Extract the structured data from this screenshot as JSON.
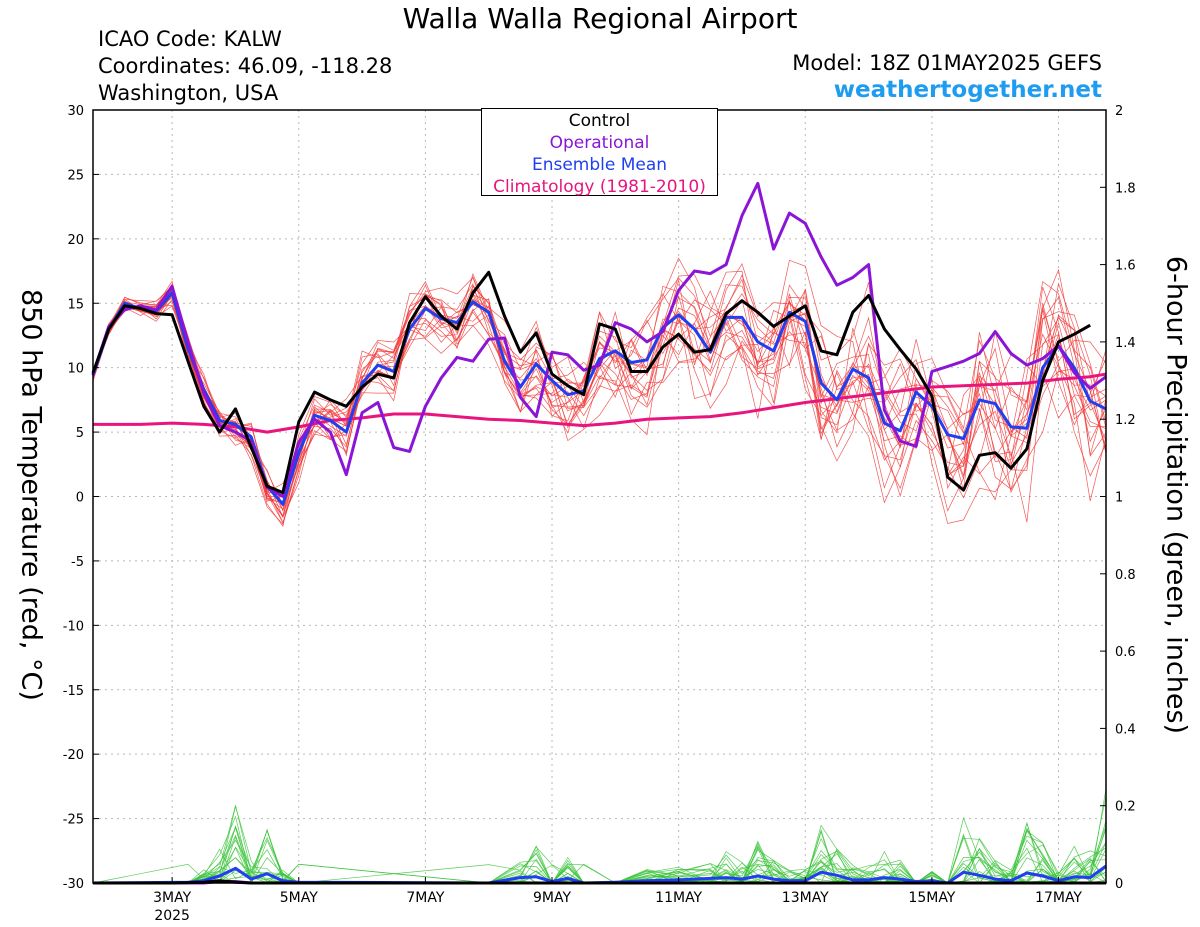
{
  "header": {
    "title": "Walla Walla Regional Airport",
    "icao": "ICAO Code: KALW",
    "coords": "Coordinates: 46.09, -118.28",
    "region": "Washington, USA",
    "model": "Model: 18Z 01MAY2025 GEFS",
    "brand": "weathertogether.net"
  },
  "axes": {
    "left_label": "850 hPa Temperature (red, °C)",
    "right_label": "6-hour Precipitation (green, inches)"
  },
  "colors": {
    "control": "#000000",
    "operational": "#8a15d6",
    "mean": "#1f3ff0",
    "climatology": "#e8157e",
    "members_temp": "#f23a3a",
    "members_precip": "#3cc43c"
  },
  "chart_data": {
    "type": "line",
    "x_unit": "day of May 2025 (UTC)",
    "xlim": [
      1.75,
      17.75
    ],
    "x_ticks": [
      {
        "value": 3,
        "label": "3MAY",
        "sublabel": "2025"
      },
      {
        "value": 5,
        "label": "5MAY"
      },
      {
        "value": 7,
        "label": "7MAY"
      },
      {
        "value": 9,
        "label": "9MAY"
      },
      {
        "value": 11,
        "label": "11MAY"
      },
      {
        "value": 13,
        "label": "13MAY"
      },
      {
        "value": 15,
        "label": "15MAY"
      },
      {
        "value": 17,
        "label": "17MAY"
      }
    ],
    "ylim_left": [
      -30,
      30
    ],
    "yticks_left": [
      30,
      25,
      20,
      15,
      10,
      5,
      0,
      -5,
      -10,
      -15,
      -20,
      -25,
      -30
    ],
    "ylim_right": [
      0,
      2
    ],
    "yticks_right": [
      "2",
      "1.8",
      "1.6",
      "1.4",
      "1.2",
      "1",
      "0.8",
      "0.6",
      "0.4",
      "0.2",
      "0"
    ],
    "grid": true,
    "legend": {
      "position": "top-center",
      "entries": [
        "Control",
        "Operational",
        "Ensemble Mean",
        "Climatology (1981-2010)"
      ]
    },
    "series": [
      {
        "name": "Control",
        "axis": "left",
        "points": [
          [
            1.75,
            9.6
          ],
          [
            2.0,
            13.0
          ],
          [
            2.25,
            14.8
          ],
          [
            2.5,
            14.6
          ],
          [
            2.75,
            14.2
          ],
          [
            3.0,
            14.1
          ],
          [
            3.25,
            10.5
          ],
          [
            3.5,
            7.0
          ],
          [
            3.75,
            5.0
          ],
          [
            4.0,
            6.8
          ],
          [
            4.25,
            3.8
          ],
          [
            4.5,
            0.8
          ],
          [
            4.75,
            0.3
          ],
          [
            5.0,
            5.8
          ],
          [
            5.25,
            8.1
          ],
          [
            5.5,
            7.5
          ],
          [
            5.75,
            7.0
          ],
          [
            6.0,
            8.5
          ],
          [
            6.25,
            9.5
          ],
          [
            6.5,
            9.2
          ],
          [
            6.75,
            13.5
          ],
          [
            7.0,
            15.5
          ],
          [
            7.25,
            14.0
          ],
          [
            7.5,
            13.0
          ],
          [
            7.75,
            15.8
          ],
          [
            8.0,
            17.4
          ],
          [
            8.25,
            14.0
          ],
          [
            8.5,
            11.2
          ],
          [
            8.75,
            12.7
          ],
          [
            9.0,
            9.5
          ],
          [
            9.25,
            8.6
          ],
          [
            9.5,
            7.9
          ],
          [
            9.75,
            13.4
          ],
          [
            10.0,
            13.0
          ],
          [
            10.25,
            9.7
          ],
          [
            10.5,
            9.7
          ],
          [
            10.75,
            11.6
          ],
          [
            11.0,
            12.6
          ],
          [
            11.25,
            11.2
          ],
          [
            11.5,
            11.4
          ],
          [
            11.75,
            14.2
          ],
          [
            12.0,
            15.2
          ],
          [
            12.25,
            14.3
          ],
          [
            12.5,
            13.2
          ],
          [
            12.75,
            14.0
          ],
          [
            13.0,
            14.8
          ],
          [
            13.25,
            11.3
          ],
          [
            13.5,
            11.0
          ],
          [
            13.75,
            14.3
          ],
          [
            14.0,
            15.6
          ],
          [
            14.25,
            13.0
          ],
          [
            14.5,
            11.4
          ],
          [
            14.75,
            9.9
          ],
          [
            15.0,
            7.8
          ],
          [
            15.25,
            1.5
          ],
          [
            15.5,
            0.5
          ],
          [
            15.75,
            3.2
          ],
          [
            16.0,
            3.4
          ],
          [
            16.25,
            2.2
          ],
          [
            16.5,
            3.7
          ],
          [
            16.75,
            9.0
          ],
          [
            17.0,
            12.0
          ],
          [
            17.25,
            12.6
          ],
          [
            17.5,
            13.3
          ]
        ]
      },
      {
        "name": "Operational",
        "axis": "left",
        "points": [
          [
            1.75,
            9.5
          ],
          [
            2.0,
            13.2
          ],
          [
            2.25,
            14.5
          ],
          [
            2.5,
            14.8
          ],
          [
            2.75,
            14.5
          ],
          [
            3.0,
            16.3
          ],
          [
            3.25,
            12.0
          ],
          [
            3.5,
            8.0
          ],
          [
            3.75,
            5.5
          ],
          [
            4.0,
            5.0
          ],
          [
            4.25,
            4.3
          ],
          [
            4.5,
            0.7
          ],
          [
            4.75,
            0.0
          ],
          [
            5.0,
            4.2
          ],
          [
            5.25,
            6.0
          ],
          [
            5.5,
            5.0
          ],
          [
            5.75,
            1.7
          ],
          [
            6.0,
            6.5
          ],
          [
            6.25,
            7.3
          ],
          [
            6.5,
            3.8
          ],
          [
            6.75,
            3.5
          ],
          [
            7.0,
            7.0
          ],
          [
            7.25,
            9.2
          ],
          [
            7.5,
            10.8
          ],
          [
            7.75,
            10.5
          ],
          [
            8.0,
            12.2
          ],
          [
            8.25,
            12.3
          ],
          [
            8.5,
            7.7
          ],
          [
            8.75,
            6.2
          ],
          [
            9.0,
            11.2
          ],
          [
            9.25,
            11.0
          ],
          [
            9.5,
            9.8
          ],
          [
            9.75,
            10.2
          ],
          [
            10.0,
            13.5
          ],
          [
            10.25,
            13.0
          ],
          [
            10.5,
            12.0
          ],
          [
            10.75,
            12.8
          ],
          [
            11.0,
            16.0
          ],
          [
            11.25,
            17.5
          ],
          [
            11.5,
            17.3
          ],
          [
            11.75,
            18.0
          ],
          [
            12.0,
            21.8
          ],
          [
            12.25,
            24.3
          ],
          [
            12.5,
            19.2
          ],
          [
            12.75,
            22.0
          ],
          [
            13.0,
            21.2
          ],
          [
            13.25,
            18.6
          ],
          [
            13.5,
            16.4
          ],
          [
            13.75,
            17.0
          ],
          [
            14.0,
            18.0
          ],
          [
            14.25,
            6.7
          ],
          [
            14.5,
            4.3
          ],
          [
            14.75,
            3.9
          ],
          [
            15.0,
            9.7
          ],
          [
            15.25,
            10.1
          ],
          [
            15.5,
            10.5
          ],
          [
            15.75,
            11.1
          ],
          [
            16.0,
            12.8
          ],
          [
            16.25,
            11.1
          ],
          [
            16.5,
            10.2
          ],
          [
            16.75,
            10.7
          ],
          [
            17.0,
            11.7
          ],
          [
            17.25,
            9.6
          ],
          [
            17.5,
            8.4
          ],
          [
            17.75,
            9.3
          ]
        ]
      },
      {
        "name": "Ensemble Mean",
        "axis": "left",
        "points": [
          [
            1.75,
            9.4
          ],
          [
            2.0,
            13.0
          ],
          [
            2.25,
            15.0
          ],
          [
            2.5,
            14.6
          ],
          [
            2.75,
            14.4
          ],
          [
            3.0,
            15.8
          ],
          [
            3.25,
            11.5
          ],
          [
            3.5,
            8.3
          ],
          [
            3.75,
            5.9
          ],
          [
            4.0,
            5.6
          ],
          [
            4.25,
            4.6
          ],
          [
            4.5,
            0.8
          ],
          [
            4.75,
            -0.6
          ],
          [
            5.0,
            3.4
          ],
          [
            5.25,
            6.3
          ],
          [
            5.5,
            5.9
          ],
          [
            5.75,
            5.0
          ],
          [
            6.0,
            8.8
          ],
          [
            6.25,
            10.2
          ],
          [
            6.5,
            9.7
          ],
          [
            6.75,
            13.0
          ],
          [
            7.0,
            14.6
          ],
          [
            7.25,
            13.8
          ],
          [
            7.5,
            13.5
          ],
          [
            7.75,
            15.1
          ],
          [
            8.0,
            14.3
          ],
          [
            8.25,
            10.5
          ],
          [
            8.5,
            8.5
          ],
          [
            8.75,
            10.3
          ],
          [
            9.0,
            9.0
          ],
          [
            9.25,
            7.9
          ],
          [
            9.5,
            8.2
          ],
          [
            9.75,
            10.7
          ],
          [
            10.0,
            11.3
          ],
          [
            10.25,
            10.4
          ],
          [
            10.5,
            10.6
          ],
          [
            10.75,
            13.1
          ],
          [
            11.0,
            14.1
          ],
          [
            11.25,
            13.0
          ],
          [
            11.5,
            11.2
          ],
          [
            11.75,
            13.9
          ],
          [
            12.0,
            13.9
          ],
          [
            12.25,
            12.0
          ],
          [
            12.5,
            11.3
          ],
          [
            12.75,
            14.3
          ],
          [
            13.0,
            13.6
          ],
          [
            13.25,
            8.8
          ],
          [
            13.5,
            7.5
          ],
          [
            13.75,
            9.9
          ],
          [
            14.0,
            9.2
          ],
          [
            14.25,
            5.7
          ],
          [
            14.5,
            5.1
          ],
          [
            14.75,
            8.1
          ],
          [
            15.0,
            7.0
          ],
          [
            15.25,
            4.8
          ],
          [
            15.5,
            4.5
          ],
          [
            15.75,
            7.5
          ],
          [
            16.0,
            7.2
          ],
          [
            16.25,
            5.4
          ],
          [
            16.5,
            5.3
          ],
          [
            16.75,
            10.0
          ],
          [
            17.0,
            11.7
          ],
          [
            17.25,
            10.0
          ],
          [
            17.5,
            7.4
          ],
          [
            17.75,
            6.8
          ]
        ]
      },
      {
        "name": "Climatology (1981-2010)",
        "axis": "left",
        "points": [
          [
            1.75,
            5.6
          ],
          [
            2.5,
            5.6
          ],
          [
            3.0,
            5.7
          ],
          [
            3.5,
            5.6
          ],
          [
            4.0,
            5.4
          ],
          [
            4.5,
            5.0
          ],
          [
            5.0,
            5.4
          ],
          [
            5.5,
            5.9
          ],
          [
            6.0,
            6.1
          ],
          [
            6.5,
            6.4
          ],
          [
            7.0,
            6.4
          ],
          [
            7.5,
            6.2
          ],
          [
            8.0,
            6.0
          ],
          [
            8.5,
            5.9
          ],
          [
            9.0,
            5.7
          ],
          [
            9.5,
            5.5
          ],
          [
            10.0,
            5.7
          ],
          [
            10.5,
            6.0
          ],
          [
            11.0,
            6.1
          ],
          [
            11.5,
            6.2
          ],
          [
            12.0,
            6.5
          ],
          [
            12.5,
            6.9
          ],
          [
            13.0,
            7.3
          ],
          [
            13.5,
            7.6
          ],
          [
            14.0,
            7.9
          ],
          [
            14.5,
            8.2
          ],
          [
            15.0,
            8.5
          ],
          [
            15.5,
            8.6
          ],
          [
            16.0,
            8.7
          ],
          [
            16.5,
            8.8
          ],
          [
            17.0,
            9.1
          ],
          [
            17.5,
            9.3
          ],
          [
            17.75,
            9.5
          ]
        ]
      },
      {
        "name": "Control",
        "axis": "right",
        "points": [
          [
            1.75,
            0.0
          ],
          [
            3.0,
            0.0
          ],
          [
            3.5,
            0.002
          ],
          [
            3.75,
            0.006
          ],
          [
            4.0,
            0.002
          ],
          [
            4.25,
            0.0
          ],
          [
            17.75,
            0.0
          ]
        ]
      },
      {
        "name": "Operational",
        "axis": "right",
        "points": [
          [
            1.75,
            0.0
          ],
          [
            3.5,
            0.0
          ],
          [
            3.75,
            0.004
          ],
          [
            4.0,
            0.004
          ],
          [
            4.25,
            0.0
          ],
          [
            17.75,
            0.0
          ]
        ]
      },
      {
        "name": "Ensemble Mean",
        "axis": "right",
        "points": [
          [
            1.75,
            0.0
          ],
          [
            3.25,
            0.002
          ],
          [
            3.5,
            0.006
          ],
          [
            3.75,
            0.018
          ],
          [
            4.0,
            0.038
          ],
          [
            4.25,
            0.01
          ],
          [
            4.5,
            0.024
          ],
          [
            4.75,
            0.006
          ],
          [
            5.0,
            0.002
          ],
          [
            8.0,
            0.0
          ],
          [
            8.5,
            0.014
          ],
          [
            8.75,
            0.016
          ],
          [
            9.0,
            0.004
          ],
          [
            9.25,
            0.012
          ],
          [
            9.5,
            0.0
          ],
          [
            10.0,
            0.002
          ],
          [
            10.5,
            0.006
          ],
          [
            11.0,
            0.008
          ],
          [
            11.5,
            0.012
          ],
          [
            11.75,
            0.014
          ],
          [
            12.0,
            0.01
          ],
          [
            12.25,
            0.018
          ],
          [
            12.5,
            0.01
          ],
          [
            12.75,
            0.006
          ],
          [
            13.0,
            0.006
          ],
          [
            13.25,
            0.028
          ],
          [
            13.5,
            0.02
          ],
          [
            13.75,
            0.008
          ],
          [
            14.0,
            0.008
          ],
          [
            14.25,
            0.014
          ],
          [
            14.5,
            0.01
          ],
          [
            14.75,
            0.004
          ],
          [
            15.0,
            0.006
          ],
          [
            15.25,
            0.0
          ],
          [
            15.5,
            0.028
          ],
          [
            15.75,
            0.02
          ],
          [
            16.0,
            0.01
          ],
          [
            16.25,
            0.006
          ],
          [
            16.5,
            0.026
          ],
          [
            16.75,
            0.018
          ],
          [
            17.0,
            0.006
          ],
          [
            17.25,
            0.016
          ],
          [
            17.5,
            0.014
          ],
          [
            17.75,
            0.044
          ]
        ]
      }
    ]
  }
}
